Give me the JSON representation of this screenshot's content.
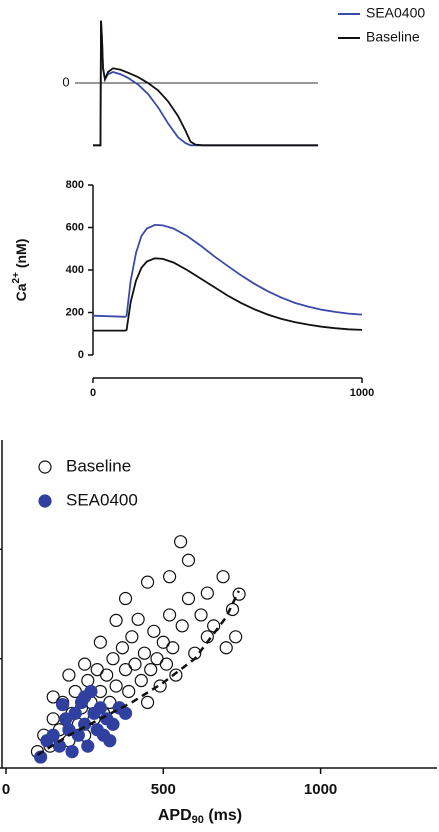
{
  "chart_data": [
    {
      "type": "line",
      "legend": "top-right",
      "x": [
        0,
        15,
        16,
        18,
        20,
        24,
        30,
        40,
        55,
        70,
        90,
        110,
        130,
        150,
        170,
        185,
        195,
        205,
        220,
        450
      ],
      "xlim": [
        0,
        450
      ],
      "ylim": [
        -90,
        90
      ],
      "yticks": [
        0
      ],
      "series": [
        {
          "name": "SEA0400",
          "color": "#3b4aa8",
          "values": [
            -85,
            -85,
            85,
            60,
            20,
            5,
            12,
            15,
            12,
            7,
            -2,
            -15,
            -33,
            -55,
            -74,
            -82,
            -85,
            -85,
            -85,
            -85
          ]
        },
        {
          "name": "Baseline",
          "color": "#111111",
          "values": [
            -85,
            -85,
            85,
            60,
            20,
            5,
            15,
            20,
            18,
            14,
            8,
            0,
            -10,
            -25,
            -45,
            -65,
            -80,
            -84,
            -85,
            -85
          ]
        }
      ]
    },
    {
      "type": "line",
      "ylabel": {
        "main": "Ca",
        "sup": "2+",
        "unit": "(nM)"
      },
      "x": [
        0,
        120,
        125,
        140,
        160,
        180,
        200,
        230,
        260,
        300,
        350,
        400,
        450,
        500,
        550,
        600,
        650,
        700,
        750,
        800,
        850,
        900,
        950,
        1000
      ],
      "xlim": [
        0,
        1000
      ],
      "xticks": [
        0,
        1000
      ],
      "ylim": [
        0,
        800
      ],
      "yticks": [
        0,
        200,
        400,
        600,
        800
      ],
      "series": [
        {
          "color": "#3b4aa8",
          "values": [
            185,
            180,
            185,
            350,
            480,
            560,
            595,
            612,
            610,
            595,
            560,
            515,
            465,
            420,
            375,
            335,
            300,
            270,
            245,
            228,
            213,
            203,
            195,
            190
          ]
        },
        {
          "color": "#111111",
          "values": [
            115,
            115,
            118,
            250,
            350,
            410,
            440,
            455,
            452,
            435,
            400,
            360,
            320,
            280,
            245,
            215,
            190,
            170,
            155,
            143,
            133,
            126,
            121,
            118
          ]
        }
      ]
    },
    {
      "type": "scatter",
      "legend": "top-left",
      "xlabel": {
        "main": "APD",
        "sub": "90",
        "unit": "(ms)"
      },
      "xlim": [
        0,
        1370
      ],
      "xticks": [
        0,
        500,
        1000
      ],
      "ylim": [
        0,
        3
      ],
      "yticks": [
        0,
        1,
        2
      ],
      "series": [
        {
          "name": "Baseline",
          "color": "#111111",
          "filled": false,
          "x": [
            100,
            120,
            140,
            150,
            170,
            180,
            200,
            210,
            220,
            230,
            240,
            250,
            260,
            270,
            280,
            290,
            300,
            310,
            320,
            330,
            340,
            350,
            360,
            370,
            380,
            390,
            400,
            410,
            420,
            430,
            440,
            450,
            460,
            470,
            480,
            490,
            500,
            510,
            520,
            530,
            540,
            555,
            560,
            580,
            600,
            620,
            640,
            660,
            690,
            700,
            720,
            741,
            730,
            250,
            300,
            350,
            200,
            150,
            380,
            450,
            520,
            580,
            640
          ],
          "values": [
            0.15,
            0.3,
            0.2,
            0.45,
            0.35,
            0.6,
            0.25,
            0.5,
            0.7,
            0.4,
            0.55,
            0.3,
            0.8,
            0.6,
            0.45,
            0.9,
            0.7,
            0.5,
            0.85,
            0.6,
            1.0,
            0.75,
            0.55,
            1.1,
            0.9,
            0.7,
            1.2,
            0.95,
            1.36,
            0.8,
            1.05,
            0.6,
            0.9,
            1.25,
            1.0,
            0.75,
            1.15,
            0.95,
            1.4,
            1.1,
            0.85,
            2.07,
            1.3,
            1.55,
            1.05,
            1.4,
            1.2,
            1.3,
            1.75,
            1.1,
            1.45,
            1.59,
            1.2,
            0.95,
            1.15,
            1.35,
            0.85,
            0.65,
            1.55,
            1.7,
            1.75,
            1.9,
            1.6
          ]
        },
        {
          "name": "SEA0400",
          "color": "#3040a0",
          "filled": true,
          "x": [
            110,
            130,
            150,
            170,
            190,
            200,
            210,
            220,
            230,
            240,
            250,
            260,
            270,
            280,
            290,
            300,
            310,
            320,
            340,
            360,
            380,
            250,
            180,
            330
          ],
          "values": [
            0.1,
            0.25,
            0.3,
            0.2,
            0.45,
            0.35,
            0.15,
            0.5,
            0.3,
            0.6,
            0.4,
            0.2,
            0.7,
            0.5,
            0.35,
            0.55,
            0.3,
            0.45,
            0.4,
            0.55,
            0.5,
            0.65,
            0.58,
            0.25
          ]
        }
      ],
      "fit": {
        "x": [
          100,
          200,
          300,
          400,
          500,
          600,
          700,
          740
        ],
        "y": [
          0.12,
          0.3,
          0.45,
          0.6,
          0.78,
          1.0,
          1.38,
          1.62
        ]
      }
    }
  ]
}
